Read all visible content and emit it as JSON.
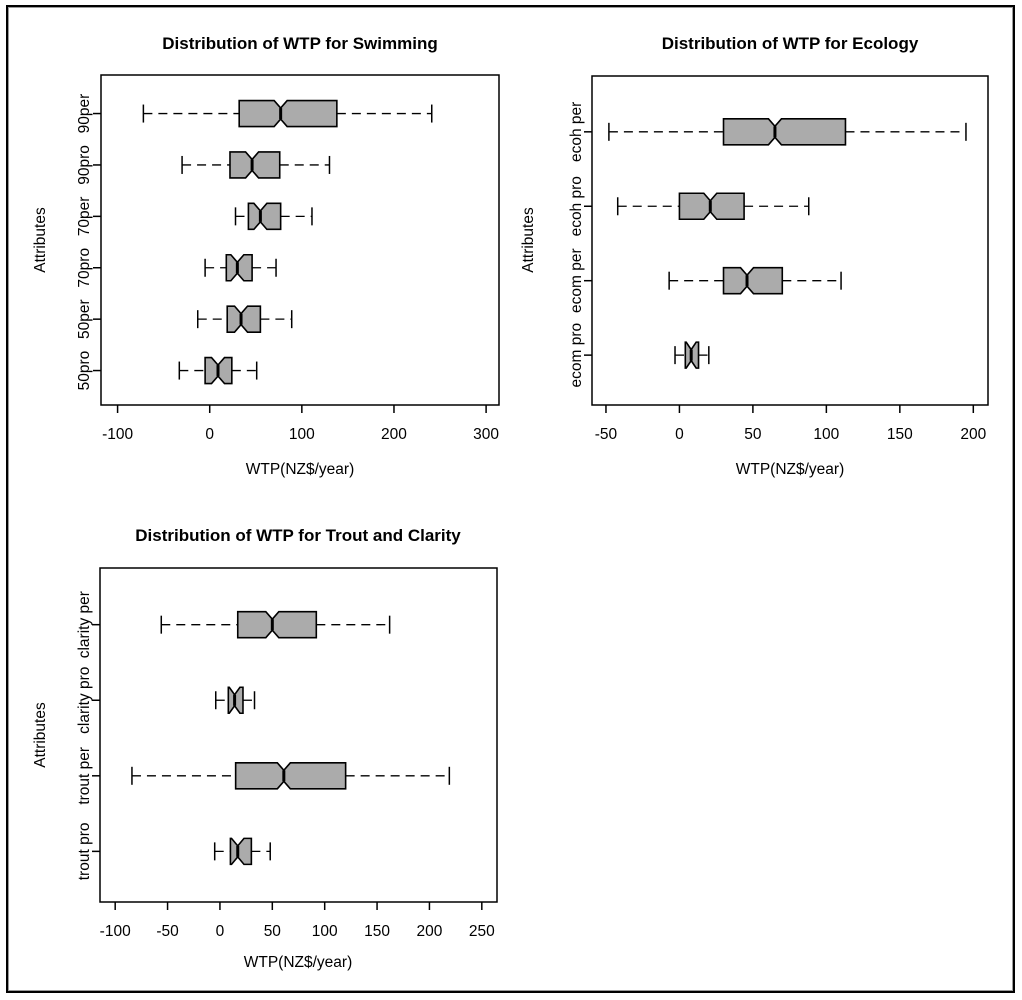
{
  "page": {
    "background": "#ffffff",
    "frame_color": "#000000"
  },
  "chart_data": [
    {
      "type": "boxplot",
      "orientation": "horizontal",
      "notched": true,
      "grid": false,
      "title": "Distribution of WTP for Swimming",
      "xlabel": "WTP(NZ$/year)",
      "ylabel": "Attributes",
      "x_ticks": [
        -100,
        0,
        100,
        200,
        300
      ],
      "xlim": [
        -118,
        314
      ],
      "box_fill": "#ababab",
      "categories": [
        "50pro",
        "50per",
        "70pro",
        "70per",
        "90pro",
        "90per"
      ],
      "boxes": [
        {
          "category": "50pro",
          "whisker_low": -33,
          "q1": -5,
          "median": 9,
          "q3": 24,
          "whisker_high": 51
        },
        {
          "category": "50per",
          "whisker_low": -13,
          "q1": 19,
          "median": 34,
          "q3": 55,
          "whisker_high": 89
        },
        {
          "category": "70pro",
          "whisker_low": -5,
          "q1": 18,
          "median": 30,
          "q3": 46,
          "whisker_high": 72
        },
        {
          "category": "70per",
          "whisker_low": 28,
          "q1": 42,
          "median": 55,
          "q3": 77,
          "whisker_high": 111
        },
        {
          "category": "90pro",
          "whisker_low": -30,
          "q1": 22,
          "median": 46,
          "q3": 76,
          "whisker_high": 130
        },
        {
          "category": "90per",
          "whisker_low": -72,
          "q1": 32,
          "median": 77,
          "q3": 138,
          "whisker_high": 241
        }
      ]
    },
    {
      "type": "boxplot",
      "orientation": "horizontal",
      "notched": true,
      "grid": false,
      "title": "Distribution of WTP for Ecology",
      "xlabel": "WTP(NZ$/year)",
      "ylabel": "Attributes",
      "x_ticks": [
        -50,
        0,
        50,
        100,
        150,
        200
      ],
      "xlim": [
        -59.5,
        210
      ],
      "box_fill": "#ababab",
      "categories": [
        "ecom pro",
        "ecom per",
        "ecoh pro",
        "ecoh per"
      ],
      "boxes": [
        {
          "category": "ecom pro",
          "whisker_low": -3,
          "q1": 4,
          "median": 8,
          "q3": 13,
          "whisker_high": 20
        },
        {
          "category": "ecom per",
          "whisker_low": -7,
          "q1": 30,
          "median": 46,
          "q3": 70,
          "whisker_high": 110
        },
        {
          "category": "ecoh pro",
          "whisker_low": -42,
          "q1": 0,
          "median": 21,
          "q3": 44,
          "whisker_high": 88
        },
        {
          "category": "ecoh per",
          "whisker_low": -48,
          "q1": 30,
          "median": 65,
          "q3": 113,
          "whisker_high": 195
        }
      ]
    },
    {
      "type": "boxplot",
      "orientation": "horizontal",
      "notched": true,
      "grid": false,
      "title": "Distribution of WTP for Trout and Clarity",
      "xlabel": "WTP(NZ$/year)",
      "ylabel": "Attributes",
      "x_ticks": [
        -100,
        -50,
        0,
        50,
        100,
        150,
        200,
        250
      ],
      "xlim": [
        -114.5,
        264.5
      ],
      "box_fill": "#ababab",
      "categories": [
        "trout pro",
        "trout per",
        "clarity pro",
        "clarity per"
      ],
      "boxes": [
        {
          "category": "trout pro",
          "whisker_low": -5,
          "q1": 10,
          "median": 17,
          "q3": 30,
          "whisker_high": 48
        },
        {
          "category": "trout per",
          "whisker_low": -84,
          "q1": 15,
          "median": 61,
          "q3": 120,
          "whisker_high": 219
        },
        {
          "category": "clarity pro",
          "whisker_low": -4,
          "q1": 8,
          "median": 14,
          "q3": 22,
          "whisker_high": 33
        },
        {
          "category": "clarity per",
          "whisker_low": -56,
          "q1": 17,
          "median": 50,
          "q3": 92,
          "whisker_high": 162
        }
      ]
    }
  ]
}
